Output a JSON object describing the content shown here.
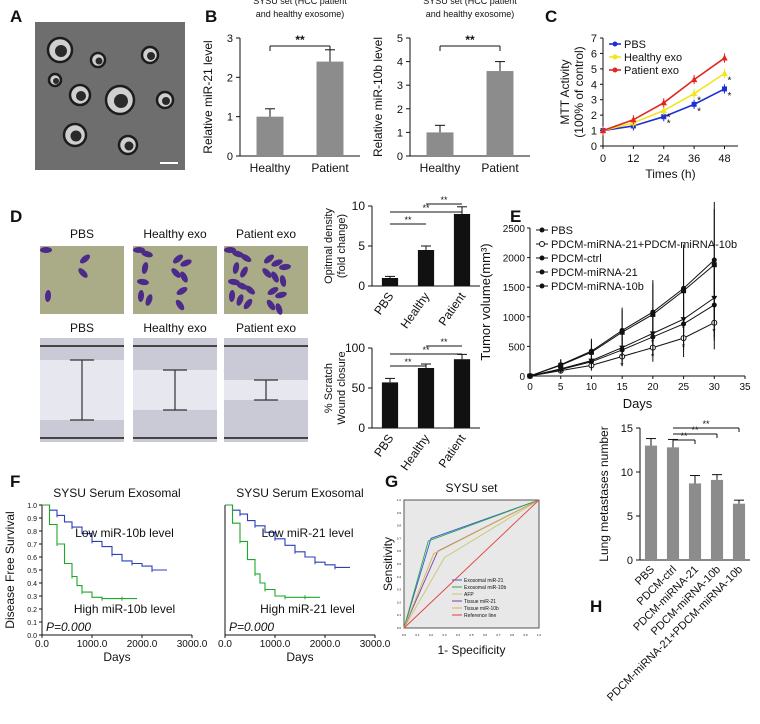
{
  "panel_letters": [
    "A",
    "B",
    "C",
    "D",
    "E",
    "F",
    "G",
    "H"
  ],
  "colors": {
    "bar_gray": "#8c8c8c",
    "pbs": "#1f2fd6",
    "healthy": "#f2e51a",
    "patient": "#e0261f",
    "roc_bg": "#e8e8e8",
    "km_low": "#2a3fb8",
    "km_high": "#1ea829"
  },
  "chart_data": [
    {
      "id": "B1",
      "type": "bar",
      "title": "SYSU set (HCC patient\nand healthy exosome)",
      "categories": [
        "Healthy",
        "Patient"
      ],
      "values": [
        1.0,
        2.4
      ],
      "errors": [
        0.2,
        0.3
      ],
      "ylabel": "Relative miR-21 level",
      "ylim": [
        0,
        3
      ],
      "yticks": [
        0,
        1,
        2,
        3
      ],
      "significance": "**"
    },
    {
      "id": "B2",
      "type": "bar",
      "title": "SYSU set (HCC patient\nand healthy exosome)",
      "categories": [
        "Healthy",
        "Patient"
      ],
      "values": [
        1.0,
        3.6
      ],
      "errors": [
        0.3,
        0.4
      ],
      "ylabel": "Relative miR-10b level",
      "ylim": [
        0,
        5
      ],
      "yticks": [
        0,
        1,
        2,
        3,
        4,
        5
      ],
      "significance": "**"
    },
    {
      "id": "C",
      "type": "line",
      "x": [
        0,
        12,
        24,
        36,
        48
      ],
      "xlabel": "Times (h)",
      "ylabel": "MTT Activity\n(100% of control)",
      "ylim": [
        0,
        7
      ],
      "yticks": [
        0,
        1,
        2,
        3,
        4,
        5,
        6,
        7
      ],
      "series": [
        {
          "name": "PBS",
          "values": [
            1.0,
            1.3,
            1.9,
            2.7,
            3.7
          ],
          "color": "#1f2fd6"
        },
        {
          "name": "Healthy exo",
          "values": [
            1.0,
            1.5,
            2.3,
            3.4,
            4.7
          ],
          "color": "#f2e51a"
        },
        {
          "name": "Patient exo",
          "values": [
            1.0,
            1.7,
            2.8,
            4.3,
            5.7
          ],
          "color": "#e0261f"
        }
      ],
      "legend": "top-left"
    },
    {
      "id": "D1",
      "type": "bar",
      "categories": [
        "PBS",
        "Healthy",
        "Patient"
      ],
      "values": [
        1.0,
        4.5,
        9.0
      ],
      "errors": [
        0.2,
        0.5,
        0.9
      ],
      "ylabel": "Opitmal density\n(fold change)",
      "ylim": [
        0,
        10
      ],
      "yticks": [
        0,
        5,
        10
      ],
      "significance": [
        "**",
        "**",
        "**"
      ]
    },
    {
      "id": "D2",
      "type": "bar",
      "categories": [
        "PBS",
        "Healthy",
        "Patient"
      ],
      "values": [
        57,
        75,
        86
      ],
      "errors": [
        5,
        5,
        6
      ],
      "ylabel": "% Scratch\nWound closure",
      "ylim": [
        0,
        100
      ],
      "yticks": [
        0,
        50,
        100
      ],
      "significance": [
        "**",
        "**",
        "**"
      ]
    },
    {
      "id": "G",
      "type": "line",
      "x": [
        0,
        5,
        10,
        15,
        20,
        25,
        30
      ],
      "xlabel": "Days",
      "ylabel": "Tumor volume(mm³)",
      "ylim": [
        0,
        2500
      ],
      "yticks": [
        0,
        500,
        1000,
        1500,
        2000,
        2500
      ],
      "xticks": [
        0,
        5,
        10,
        15,
        20,
        25,
        30,
        35
      ],
      "series": [
        {
          "name": "PBS",
          "values": [
            0,
            190,
            420,
            770,
            1080,
            1480,
            1960
          ]
        },
        {
          "name": "PDCM-miRNA-21+PDCM-miRNA-10b",
          "values": [
            0,
            90,
            180,
            330,
            480,
            640,
            900
          ]
        },
        {
          "name": "PDCM-ctrl",
          "values": [
            0,
            180,
            400,
            740,
            1040,
            1440,
            1880
          ]
        },
        {
          "name": "PDCM-miRNA-21",
          "values": [
            0,
            120,
            260,
            480,
            720,
            960,
            1320
          ]
        },
        {
          "name": "PDCM-miRNA-10b",
          "values": [
            0,
            110,
            240,
            440,
            660,
            880,
            1200
          ]
        }
      ],
      "legend": "top-left"
    },
    {
      "id": "H",
      "type": "bar",
      "categories": [
        "PBS",
        "PDCM-ctrl",
        "PDCM-miRNA-21",
        "PDCM-miRNA-10b",
        "PDCM-miRNA-21+PDCM-miRNA-10b"
      ],
      "values": [
        13.0,
        12.8,
        8.7,
        9.1,
        6.4
      ],
      "errors": [
        0.8,
        0.9,
        0.9,
        0.6,
        0.4
      ],
      "ylabel": "Lung metastases number",
      "ylim": [
        0,
        15
      ],
      "yticks": [
        0,
        5,
        10,
        15
      ],
      "significance": [
        "**",
        "**",
        "**"
      ]
    },
    {
      "id": "E1",
      "type": "line",
      "title": "SYSU Serum Exosomal",
      "xlabel": "Days",
      "ylabel": "Disease Free Survival",
      "xlim": [
        0,
        3000
      ],
      "ylim": [
        0,
        1.0
      ],
      "xticks": [
        0,
        1000,
        2000,
        3000
      ],
      "xtick_labels": [
        "0.0",
        "1000.0",
        "2000.0",
        "3000.0"
      ],
      "yticks": [
        0,
        0.1,
        0.2,
        0.3,
        0.4,
        0.5,
        0.6,
        0.7,
        0.8,
        0.9,
        1.0
      ],
      "annotations": [
        "Low miR-10b level",
        "High miR-10b level",
        "P=0.000"
      ],
      "series": [
        {
          "x": [
            0,
            150,
            300,
            450,
            600,
            800,
            1000,
            1200,
            1400,
            1600,
            1800,
            2000,
            2200,
            2500
          ],
          "values": [
            1.0,
            0.96,
            0.92,
            0.87,
            0.83,
            0.78,
            0.72,
            0.68,
            0.62,
            0.57,
            0.55,
            0.53,
            0.5,
            0.5
          ]
        },
        {
          "x": [
            0,
            150,
            300,
            450,
            600,
            700,
            800,
            1000,
            1200,
            1400,
            1600,
            1900
          ],
          "values": [
            1.0,
            0.85,
            0.7,
            0.55,
            0.45,
            0.38,
            0.33,
            0.29,
            0.28,
            0.28,
            0.28,
            0.28
          ]
        }
      ]
    },
    {
      "id": "E2",
      "type": "line",
      "title": "SYSU Serum Exosomal",
      "xlabel": "Days",
      "xlim": [
        0,
        3000
      ],
      "ylim": [
        0,
        1.0
      ],
      "xticks": [
        0,
        1000,
        2000,
        3000
      ],
      "xtick_labels": [
        "0.0",
        "1000.0",
        "2000.0",
        "3000.0"
      ],
      "annotations": [
        "Low miR-21 level",
        "High miR-21 level",
        "P=0.000"
      ],
      "series": [
        {
          "x": [
            0,
            150,
            300,
            450,
            600,
            800,
            1000,
            1200,
            1400,
            1600,
            1800,
            2000,
            2200,
            2500
          ],
          "values": [
            1.0,
            0.96,
            0.93,
            0.88,
            0.84,
            0.79,
            0.74,
            0.69,
            0.64,
            0.6,
            0.56,
            0.54,
            0.52,
            0.52
          ]
        },
        {
          "x": [
            0,
            150,
            300,
            450,
            600,
            700,
            800,
            1000,
            1200,
            1400,
            1600,
            1900
          ],
          "values": [
            1.0,
            0.86,
            0.72,
            0.58,
            0.47,
            0.4,
            0.35,
            0.3,
            0.29,
            0.29,
            0.29,
            0.29
          ]
        }
      ]
    },
    {
      "id": "F",
      "type": "line",
      "title": "SYSU set",
      "xlabel": "1- Specificity",
      "ylabel": "Sensitivity",
      "xlim": [
        0,
        1
      ],
      "ylim": [
        0,
        1
      ],
      "xticks": [
        0,
        0.1,
        0.2,
        0.3,
        0.4,
        0.5,
        0.6,
        0.7,
        0.8,
        0.9,
        1.0
      ],
      "yticks": [
        0,
        0.1,
        0.2,
        0.3,
        0.4,
        0.5,
        0.6,
        0.7,
        0.8,
        0.9,
        1.0
      ],
      "series": [
        {
          "name": "Exosomal miR-21",
          "x": [
            0,
            0.2,
            1
          ],
          "values": [
            0,
            0.7,
            1
          ],
          "color": "#3b57d9"
        },
        {
          "name": "Exosomal miR-10b",
          "x": [
            0,
            0.18,
            1
          ],
          "values": [
            0,
            0.68,
            1
          ],
          "color": "#2ea44f"
        },
        {
          "name": "AFP",
          "x": [
            0,
            0.3,
            1
          ],
          "values": [
            0,
            0.55,
            1
          ],
          "color": "#c8c878"
        },
        {
          "name": "Tissue miR-21",
          "x": [
            0,
            0.25,
            1
          ],
          "values": [
            0,
            0.6,
            1
          ],
          "color": "#7b3fa0"
        },
        {
          "name": "Tissue miR-10b",
          "x": [
            0,
            0.22,
            1
          ],
          "values": [
            0,
            0.58,
            1
          ],
          "color": "#d7b34a"
        },
        {
          "name": "Reference line",
          "x": [
            0,
            1
          ],
          "values": [
            0,
            1
          ],
          "color": "#e04040"
        }
      ],
      "legend": "bottom-right"
    }
  ],
  "labels": {
    "D_pbs": "PBS",
    "D_healthy": "Healthy exo",
    "D_patient": "Patient exo"
  }
}
